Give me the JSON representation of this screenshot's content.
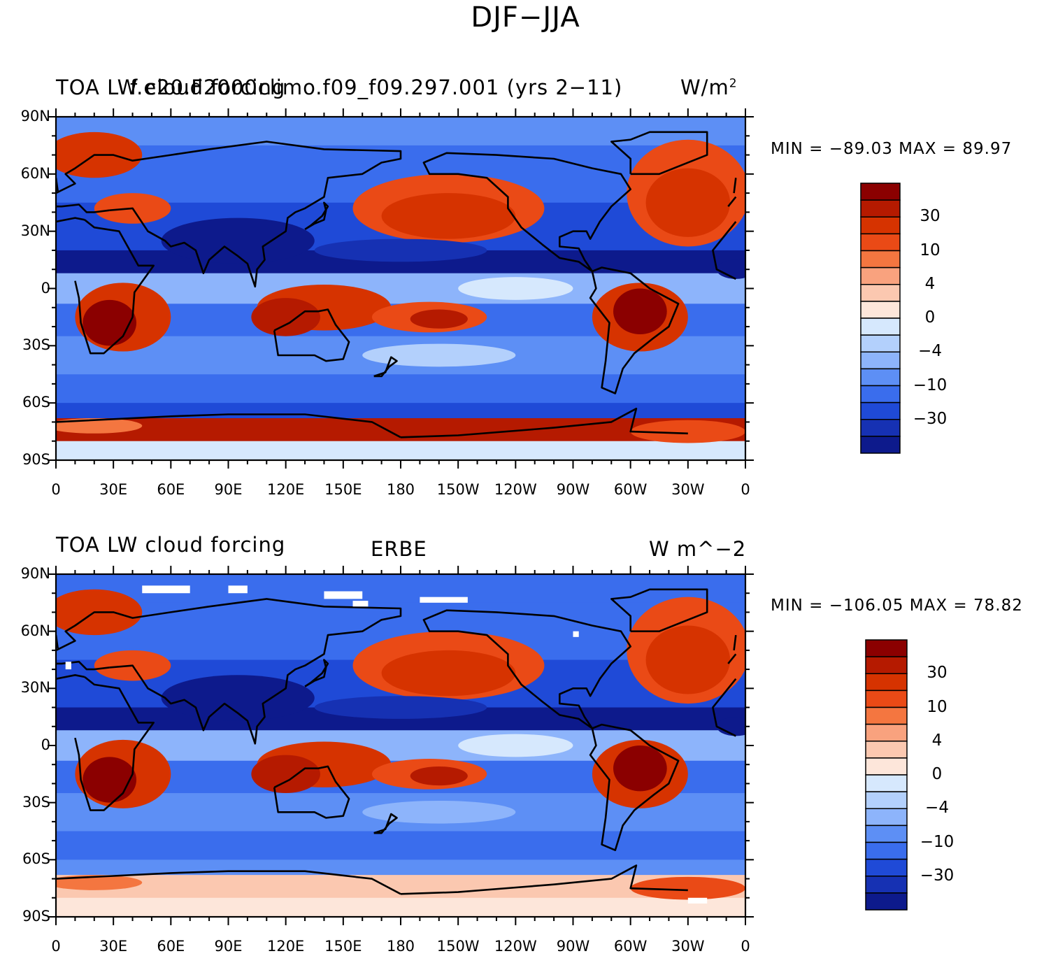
{
  "figure": {
    "title": "DJF−JJA"
  },
  "panels": [
    {
      "left_title": "TOA LW cloud forcing",
      "center_title": "f.e20.F2000climo.f09_f09.297.001 (yrs 2−11)",
      "right_title": "W/m",
      "right_title_sup": "2",
      "minmax": "MIN = −89.03 MAX =  89.97"
    },
    {
      "left_title": "TOA LW cloud forcing",
      "center_title": "ERBE",
      "right_title": "W m^−2",
      "minmax": "MIN = −106.05 MAX =  78.82"
    }
  ],
  "chart_data": {
    "type": "heatmap",
    "projection": "cylindrical equidistant, centered 180",
    "lat_ticks": [
      "90N",
      "60N",
      "30N",
      "0",
      "30S",
      "60S",
      "90S"
    ],
    "lon_ticks": [
      "0",
      "30E",
      "60E",
      "90E",
      "120E",
      "150E",
      "180",
      "150W",
      "120W",
      "90W",
      "60W",
      "30W",
      "0"
    ],
    "colorbar": {
      "boundaries": [
        -50,
        -40,
        -30,
        -20,
        -10,
        -6,
        -4,
        -2,
        0,
        2,
        4,
        6,
        10,
        20,
        30,
        40
      ],
      "labels": [
        "30",
        "10",
        "4",
        "0",
        "−4",
        "−10",
        "−30"
      ],
      "colors_high_to_low": [
        "#8b0000",
        "#b51a00",
        "#d63300",
        "#ea4a16",
        "#f47640",
        "#f9a27e",
        "#fbc8b0",
        "#fde6da",
        "#d6e8fd",
        "#b3d0fc",
        "#8db4fb",
        "#5d8ff5",
        "#3a6ded",
        "#1f4ad7",
        "#1631b3",
        "#0d1a8c"
      ]
    },
    "series": [
      {
        "name": "f.e20.F2000climo.f09_f09.297.001 (yrs 2−11)",
        "units": "W/m2",
        "min": -89.03,
        "max": 89.97
      },
      {
        "name": "ERBE",
        "units": "W m^-2",
        "min": -106.05,
        "max": 78.82
      }
    ]
  }
}
